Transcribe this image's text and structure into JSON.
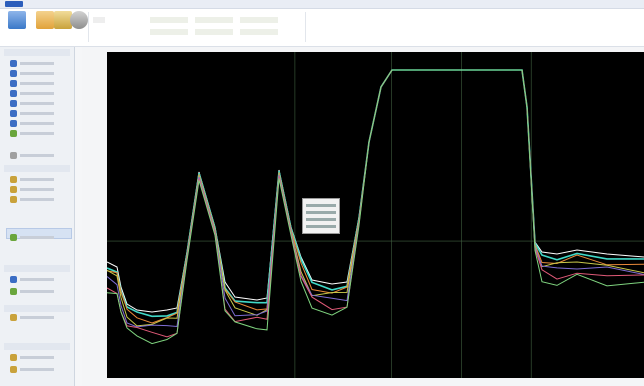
{
  "menu": {
    "file_tab": "",
    "tab_home": ""
  },
  "ribbon": {
    "buttons": [
      {
        "name": "open-button",
        "color": "#3a78c8"
      },
      {
        "name": "cursor-button",
        "color": "#e1a23a"
      },
      {
        "name": "tool-button",
        "color": "#c9a23b"
      },
      {
        "name": "settings-button",
        "color": "#8d8d8d"
      }
    ]
  },
  "sidebar": {
    "items": [
      {
        "color": "#3b6dc4"
      },
      {
        "color": "#3b6dc4"
      },
      {
        "color": "#3b6dc4"
      },
      {
        "color": "#3b6dc4"
      },
      {
        "color": "#3b6dc4"
      },
      {
        "color": "#3b6dc4"
      },
      {
        "color": "#3b6dc4"
      },
      {
        "color": "#6aa63d"
      },
      {
        "color": "#a0a0a0"
      },
      {
        "color": "#c9a23b"
      },
      {
        "color": "#c9a23b"
      },
      {
        "color": "#c9a23b"
      },
      {
        "color": "#6aa63d"
      },
      {
        "color": "#3b6dc4"
      },
      {
        "color": "#6aa63d"
      },
      {
        "color": "#c9a23b"
      },
      {
        "color": "#c9a23b"
      },
      {
        "color": "#c9a23b"
      }
    ]
  },
  "chart": {
    "background": "#000000",
    "grid_color": "#3f5f3f",
    "series_colors": [
      "#ffffff",
      "#40d9c8",
      "#e8893a",
      "#c8c84a",
      "#7e6ed4",
      "#e05a78",
      "#7fd47f"
    ],
    "highlight_color": "#40e0d0"
  }
}
